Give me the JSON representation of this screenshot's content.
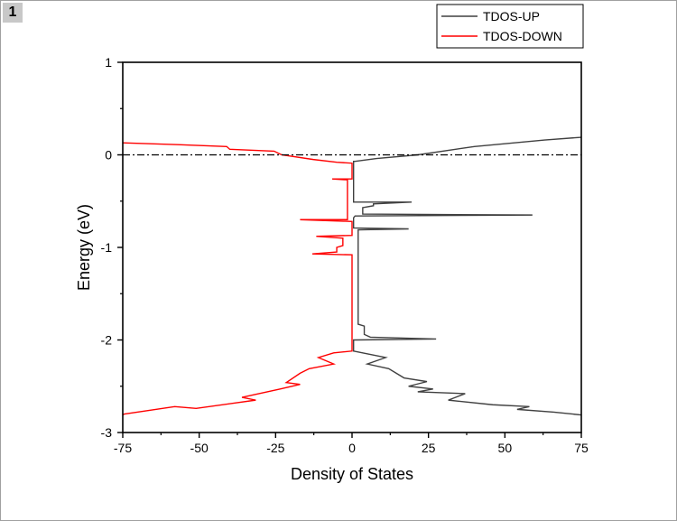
{
  "window": {
    "tab_label": "1"
  },
  "chart_data": {
    "type": "line",
    "xlabel": "Density of States",
    "ylabel": "Energy (eV)",
    "xlim": [
      -75,
      75
    ],
    "ylim": [
      -3,
      1
    ],
    "xticks": [
      "-75",
      "-50",
      "-25",
      "0",
      "25",
      "50",
      "75"
    ],
    "xtick_values": [
      -75,
      -50,
      -25,
      0,
      25,
      50,
      75
    ],
    "yticks": [
      "1",
      "0",
      "-1",
      "-2",
      "-3"
    ],
    "ytick_values": [
      1,
      0,
      -1,
      -2,
      -3
    ],
    "fermi_level": 0,
    "legend_position": "top-right",
    "series": [
      {
        "name": "TDOS-UP",
        "color": "#404040",
        "points": [
          [
            75,
            0.19
          ],
          [
            63,
            0.16
          ],
          [
            40,
            0.09
          ],
          [
            21.5,
            0
          ],
          [
            8,
            -0.04
          ],
          [
            1,
            -0.07
          ],
          [
            0.5,
            -0.07
          ],
          [
            0.5,
            -0.51
          ],
          [
            19.5,
            -0.51
          ],
          [
            7,
            -0.53
          ],
          [
            7,
            -0.55
          ],
          [
            3.5,
            -0.57
          ],
          [
            3.5,
            -0.64
          ],
          [
            59,
            -0.65
          ],
          [
            1,
            -0.66
          ],
          [
            0.5,
            -0.68
          ],
          [
            0.5,
            -0.79
          ],
          [
            18.5,
            -0.8
          ],
          [
            2,
            -0.81
          ],
          [
            2,
            -1.83
          ],
          [
            4,
            -1.85
          ],
          [
            4,
            -1.94
          ],
          [
            6,
            -1.97
          ],
          [
            27.5,
            -1.99
          ],
          [
            1,
            -2.0
          ],
          [
            0.5,
            -2.0
          ],
          [
            0.5,
            -2.12
          ],
          [
            11,
            -2.19
          ],
          [
            5,
            -2.26
          ],
          [
            12,
            -2.31
          ],
          [
            17,
            -2.41
          ],
          [
            24.5,
            -2.45
          ],
          [
            18.5,
            -2.5
          ],
          [
            26.5,
            -2.53
          ],
          [
            21.5,
            -2.56
          ],
          [
            37,
            -2.58
          ],
          [
            31.5,
            -2.65
          ],
          [
            46,
            -2.7
          ],
          [
            58,
            -2.72
          ],
          [
            54,
            -2.75
          ],
          [
            66,
            -2.78
          ],
          [
            75,
            -2.81
          ]
        ]
      },
      {
        "name": "TDOS-DOWN",
        "color": "#ff0000",
        "points": [
          [
            -75,
            0.13
          ],
          [
            -57,
            0.11
          ],
          [
            -41,
            0.09
          ],
          [
            -40,
            0.06
          ],
          [
            -25.5,
            0.04
          ],
          [
            -23,
            0
          ],
          [
            -12.7,
            -0.05
          ],
          [
            -5,
            -0.08
          ],
          [
            0,
            -0.09
          ],
          [
            0,
            -0.26
          ],
          [
            -6.5,
            -0.26
          ],
          [
            -1.5,
            -0.27
          ],
          [
            -1.5,
            -0.7
          ],
          [
            -17,
            -0.7
          ],
          [
            0,
            -0.72
          ],
          [
            0,
            -0.87
          ],
          [
            -11.7,
            -0.88
          ],
          [
            -3,
            -0.9
          ],
          [
            -3,
            -0.98
          ],
          [
            -5,
            -1.0
          ],
          [
            -5,
            -1.05
          ],
          [
            -13,
            -1.07
          ],
          [
            0,
            -1.08
          ],
          [
            0,
            -2.12
          ],
          [
            -6,
            -2.14
          ],
          [
            -11,
            -2.19
          ],
          [
            -6,
            -2.26
          ],
          [
            -14,
            -2.31
          ],
          [
            -17,
            -2.36
          ],
          [
            -21.5,
            -2.46
          ],
          [
            -17,
            -2.48
          ],
          [
            -23.5,
            -2.53
          ],
          [
            -36,
            -2.62
          ],
          [
            -31.5,
            -2.65
          ],
          [
            -51,
            -2.74
          ],
          [
            -58,
            -2.72
          ],
          [
            -74.5,
            -2.8
          ],
          [
            -75,
            -2.81
          ]
        ]
      }
    ]
  }
}
